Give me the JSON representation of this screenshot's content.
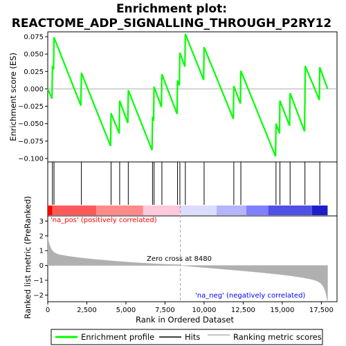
{
  "chart_data": {
    "type": "line",
    "title_lines": [
      "Enrichment plot:",
      "REACTOME_ADP_SIGNALLING_THROUGH_P2RY12"
    ],
    "top_panel": {
      "ylabel": "Enrichment score (ES)",
      "ylim": [
        -0.105,
        0.082
      ],
      "yticks": [
        0.075,
        0.05,
        0.025,
        0.0,
        -0.025,
        -0.05,
        -0.075,
        -0.1
      ],
      "ytick_labels": [
        "0.075",
        "0.050",
        "0.025",
        "0.000",
        "−0.025",
        "−0.050",
        "−0.075",
        "−0.100"
      ],
      "series_name": "Enrichment profile",
      "color": "#00ff00",
      "hits_rank": [
        300,
        400,
        2150,
        4050,
        4600,
        5150,
        6700,
        6800,
        7300,
        8300,
        8450,
        8800,
        10000,
        11900,
        12350,
        14600,
        14850,
        15500,
        16450,
        17400
      ],
      "es_profile": [
        [
          0,
          0.0
        ],
        [
          270,
          -0.014
        ],
        [
          300,
          0.033
        ],
        [
          370,
          0.028
        ],
        [
          400,
          0.074
        ],
        [
          2120,
          -0.024
        ],
        [
          2150,
          0.023
        ],
        [
          4020,
          -0.082
        ],
        [
          4050,
          -0.035
        ],
        [
          4570,
          -0.064
        ],
        [
          4600,
          -0.017
        ],
        [
          5120,
          -0.049
        ],
        [
          5150,
          -0.002
        ],
        [
          6670,
          -0.088
        ],
        [
          6700,
          -0.04
        ],
        [
          6770,
          -0.046
        ],
        [
          6800,
          0.003
        ],
        [
          7270,
          -0.026
        ],
        [
          7300,
          0.021
        ],
        [
          8270,
          -0.036
        ],
        [
          8300,
          0.012
        ],
        [
          8420,
          0.005
        ],
        [
          8450,
          0.052
        ],
        [
          8770,
          0.032
        ],
        [
          8800,
          0.079
        ],
        [
          9970,
          0.013
        ],
        [
          10000,
          0.06
        ],
        [
          11870,
          -0.043
        ],
        [
          11900,
          0.004
        ],
        [
          12320,
          -0.021
        ],
        [
          12350,
          0.026
        ],
        [
          14570,
          -0.097
        ],
        [
          14600,
          -0.05
        ],
        [
          14820,
          -0.064
        ],
        [
          14850,
          -0.017
        ],
        [
          15470,
          -0.053
        ],
        [
          15500,
          -0.006
        ],
        [
          16420,
          -0.061
        ],
        [
          16450,
          -0.014
        ],
        [
          16470,
          0.033
        ],
        [
          17370,
          -0.016
        ],
        [
          17400,
          0.031
        ],
        [
          17900,
          0.0
        ]
      ]
    },
    "bottom_panel": {
      "ylabel": "Ranked list metric (PreRanked)",
      "ylim": [
        -2.45,
        3.35
      ],
      "yticks": [
        3,
        2,
        1,
        0,
        -1,
        -2
      ],
      "ytick_labels": [
        "3",
        "2",
        "1",
        "0",
        "−1",
        "−2"
      ],
      "metric_color": "#b0b0b0",
      "zero_cross_rank": 8480,
      "zero_cross_label": "Zero cross at 8480",
      "pos_label": "'na_pos' (positively correlated)",
      "neg_label": "'na_neg' (negatively correlated)",
      "pos_label_color": "#ff0000",
      "neg_label_color": "#0000ff"
    },
    "shared_x": {
      "xlabel": "Rank in Ordered Dataset",
      "xlim": [
        0,
        18500
      ],
      "xticks": [
        0,
        2500,
        5000,
        7500,
        10000,
        12500,
        15000,
        17500
      ],
      "xtick_labels": [
        "0",
        "2,500",
        "5,000",
        "7,500",
        "10,000",
        "12,500",
        "15,000",
        "17,500"
      ],
      "n_genes": 17900
    },
    "color_bar": {
      "segments": [
        {
          "end": 300,
          "color": "#ff0000"
        },
        {
          "end": 3100,
          "color": "#ff5a5a"
        },
        {
          "end": 6100,
          "color": "#ff8a8a"
        },
        {
          "end": 8480,
          "color": "#ffc8dc"
        },
        {
          "end": 10800,
          "color": "#dcdcff"
        },
        {
          "end": 12700,
          "color": "#b4b4ff"
        },
        {
          "end": 14100,
          "color": "#8080ff"
        },
        {
          "end": 16900,
          "color": "#5050e6"
        },
        {
          "end": 17900,
          "color": "#1e1ec8"
        }
      ]
    },
    "legend": {
      "items": [
        {
          "label": "Enrichment profile",
          "kind": "line",
          "color": "#00ff00"
        },
        {
          "label": "Hits",
          "kind": "line",
          "color": "#000000"
        },
        {
          "label": "Ranking metric scores",
          "kind": "line",
          "color": "#b0b0b0"
        }
      ]
    }
  }
}
